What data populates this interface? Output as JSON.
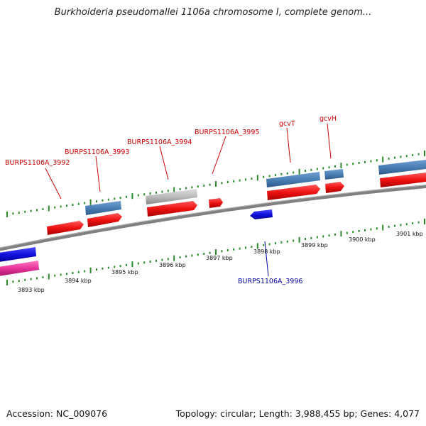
{
  "header": {
    "title": "Burkholderia pseudomallei 1106a chromosome I, complete genom..."
  },
  "footer": {
    "accession": "Accession: NC_009076",
    "summary": "Topology: circular; Length: 3,988,455 bp; Genes: 4,077"
  },
  "scale": {
    "ticks": [
      "3893 kbp",
      "3894 kbp",
      "3895 kbp",
      "3896 kbp",
      "3897 kbp",
      "3898 kbp",
      "3899 kbp",
      "3900 kbp",
      "3901 kbp"
    ]
  },
  "genes": [
    {
      "label": "BURPS1106A_3992",
      "color": "#cc0000"
    },
    {
      "label": "BURPS1106A_3993",
      "color": "#cc0000"
    },
    {
      "label": "BURPS1106A_3994",
      "color": "#cc0000"
    },
    {
      "label": "BURPS1106A_3995",
      "color": "#cc0000"
    },
    {
      "label": "gcvT",
      "color": "#cc0000"
    },
    {
      "label": "gcvH",
      "color": "#cc0000"
    },
    {
      "label": "BURPS1106A_3996",
      "color": "#0000aa"
    }
  ],
  "colors": {
    "forward_gene": "#ee1111",
    "reverse_gene": "#1111dd",
    "rna": "#4a7fb5",
    "pseudo": "#bbbbbb",
    "pink": "#e6339a",
    "ticks": "#2a8a2a",
    "backbone": "#808080"
  }
}
